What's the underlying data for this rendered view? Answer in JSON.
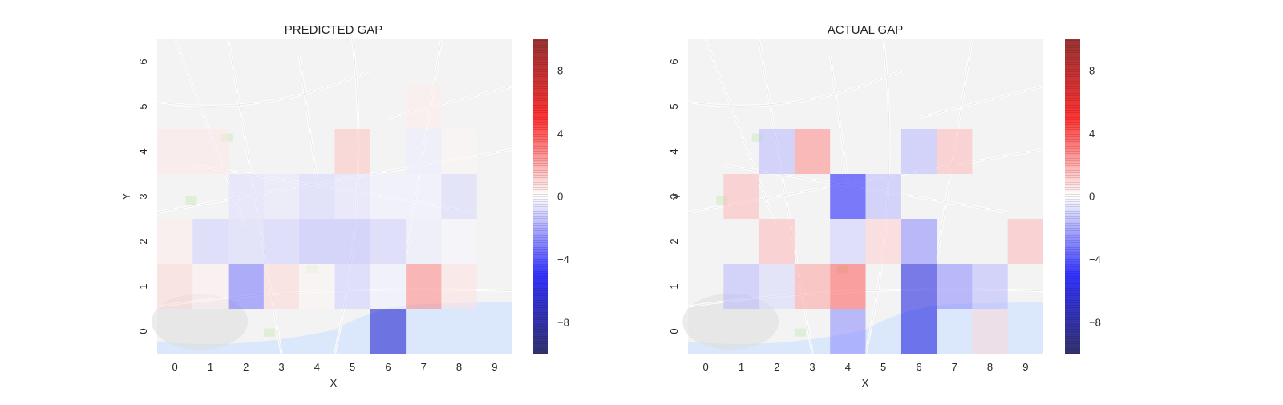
{
  "chart_data": [
    {
      "type": "heatmap",
      "title": "PREDICTED GAP",
      "xlabel": "X",
      "ylabel": "Y",
      "x_ticks": [
        "0",
        "1",
        "2",
        "3",
        "4",
        "5",
        "6",
        "7",
        "8",
        "9"
      ],
      "y_ticks": [
        "0",
        "1",
        "2",
        "3",
        "4",
        "5",
        "6"
      ],
      "colorbar": {
        "range": [
          -10,
          10
        ],
        "ticks": [
          -8,
          -4,
          0,
          4,
          8
        ]
      },
      "colormap": "seismic",
      "grid": false,
      "legend": "colorbar-right",
      "cells": [
        {
          "x": 6,
          "y": 0,
          "value": -6.5
        },
        {
          "x": 0,
          "y": 1,
          "value": 0.8
        },
        {
          "x": 1,
          "y": 1,
          "value": 0.3
        },
        {
          "x": 2,
          "y": 1,
          "value": -3.0
        },
        {
          "x": 3,
          "y": 1,
          "value": 0.8
        },
        {
          "x": 4,
          "y": 1,
          "value": 0.2
        },
        {
          "x": 5,
          "y": 1,
          "value": -1.0
        },
        {
          "x": 6,
          "y": 1,
          "value": -0.3
        },
        {
          "x": 7,
          "y": 1,
          "value": 2.6
        },
        {
          "x": 8,
          "y": 1,
          "value": 0.6
        },
        {
          "x": 0,
          "y": 2,
          "value": 0.4
        },
        {
          "x": 1,
          "y": 2,
          "value": -1.0
        },
        {
          "x": 2,
          "y": 2,
          "value": -0.8
        },
        {
          "x": 3,
          "y": 2,
          "value": -1.0
        },
        {
          "x": 4,
          "y": 2,
          "value": -1.4
        },
        {
          "x": 5,
          "y": 2,
          "value": -1.4
        },
        {
          "x": 6,
          "y": 2,
          "value": -1.0
        },
        {
          "x": 7,
          "y": 2,
          "value": -0.4
        },
        {
          "x": 8,
          "y": 2,
          "value": -0.2
        },
        {
          "x": 2,
          "y": 3,
          "value": -0.7
        },
        {
          "x": 3,
          "y": 3,
          "value": -0.5
        },
        {
          "x": 4,
          "y": 3,
          "value": -0.9
        },
        {
          "x": 5,
          "y": 3,
          "value": -0.6
        },
        {
          "x": 6,
          "y": 3,
          "value": -0.3
        },
        {
          "x": 7,
          "y": 3,
          "value": -0.3
        },
        {
          "x": 8,
          "y": 3,
          "value": -0.8
        },
        {
          "x": 0,
          "y": 4,
          "value": 0.5
        },
        {
          "x": 1,
          "y": 4,
          "value": 0.5
        },
        {
          "x": 5,
          "y": 4,
          "value": 1.3
        },
        {
          "x": 7,
          "y": 4,
          "value": -0.4
        },
        {
          "x": 8,
          "y": 4,
          "value": 0.2
        },
        {
          "x": 7,
          "y": 5,
          "value": 0.4
        }
      ]
    },
    {
      "type": "heatmap",
      "title": "ACTUAL GAP",
      "xlabel": "X",
      "ylabel": "Y",
      "x_ticks": [
        "0",
        "1",
        "2",
        "3",
        "4",
        "5",
        "6",
        "7",
        "8",
        "9"
      ],
      "y_ticks": [
        "0",
        "1",
        "2",
        "3",
        "4",
        "5",
        "6"
      ],
      "colorbar": {
        "range": [
          -10,
          10
        ],
        "ticks": [
          -8,
          -4,
          0,
          4,
          8
        ]
      },
      "colormap": "seismic",
      "grid": false,
      "legend": "colorbar-right",
      "cells": [
        {
          "x": 4,
          "y": 0,
          "value": -2.5
        },
        {
          "x": 6,
          "y": 0,
          "value": -6.0
        },
        {
          "x": 8,
          "y": 0,
          "value": 0.8
        },
        {
          "x": 1,
          "y": 1,
          "value": -1.5
        },
        {
          "x": 2,
          "y": 1,
          "value": -0.8
        },
        {
          "x": 3,
          "y": 1,
          "value": 2.0
        },
        {
          "x": 4,
          "y": 1,
          "value": 3.5
        },
        {
          "x": 6,
          "y": 1,
          "value": -6.0
        },
        {
          "x": 7,
          "y": 1,
          "value": -2.5
        },
        {
          "x": 8,
          "y": 1,
          "value": -1.5
        },
        {
          "x": 2,
          "y": 2,
          "value": 1.5
        },
        {
          "x": 4,
          "y": 2,
          "value": -1.0
        },
        {
          "x": 5,
          "y": 2,
          "value": 1.0
        },
        {
          "x": 6,
          "y": 2,
          "value": -2.5
        },
        {
          "x": 9,
          "y": 2,
          "value": 1.5
        },
        {
          "x": 1,
          "y": 3,
          "value": 1.5
        },
        {
          "x": 4,
          "y": 3,
          "value": -5.0
        },
        {
          "x": 5,
          "y": 3,
          "value": -1.5
        },
        {
          "x": 2,
          "y": 4,
          "value": -1.5
        },
        {
          "x": 3,
          "y": 4,
          "value": 2.5
        },
        {
          "x": 6,
          "y": 4,
          "value": -1.5
        },
        {
          "x": 7,
          "y": 4,
          "value": 1.5
        }
      ]
    }
  ]
}
